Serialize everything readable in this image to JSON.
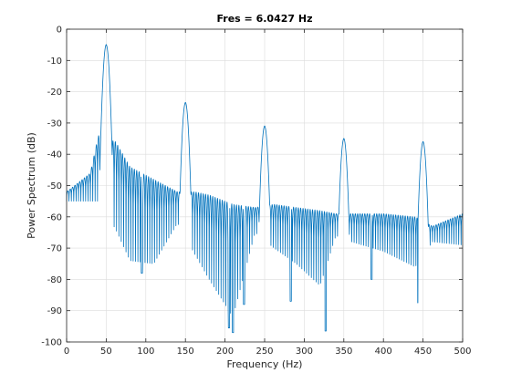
{
  "chart_data": {
    "type": "line",
    "title": "Fres = 6.0427 Hz",
    "xlabel": "Frequency (Hz)",
    "ylabel": "Power Spectrum (dB)",
    "xlim": [
      0,
      500
    ],
    "ylim": [
      -100,
      0
    ],
    "xticks": [
      0,
      50,
      100,
      150,
      200,
      250,
      300,
      350,
      400,
      450,
      500
    ],
    "yticks": [
      0,
      -10,
      -20,
      -30,
      -40,
      -50,
      -60,
      -70,
      -80,
      -90,
      -100
    ],
    "grid": true,
    "line_color": "#0072BD",
    "peaks": [
      {
        "x": 50,
        "y": -5
      },
      {
        "x": 150,
        "y": -23.5
      },
      {
        "x": 250,
        "y": -31
      },
      {
        "x": 350,
        "y": -35
      },
      {
        "x": 450,
        "y": -36
      }
    ],
    "floor": [
      {
        "x": 0,
        "upper": -52,
        "lower": -55
      },
      {
        "x": 30,
        "upper": -46,
        "lower": -55
      },
      {
        "x": 40,
        "upper": -34,
        "lower": -55
      },
      {
        "x": 62,
        "upper": -36,
        "lower": -64
      },
      {
        "x": 80,
        "upper": -44,
        "lower": -74
      },
      {
        "x": 110,
        "upper": -48,
        "lower": -75
      },
      {
        "x": 140,
        "upper": -52,
        "lower": -62
      },
      {
        "x": 162,
        "upper": -52,
        "lower": -72
      },
      {
        "x": 180,
        "upper": -53,
        "lower": -80
      },
      {
        "x": 210,
        "upper": -56,
        "lower": -92
      },
      {
        "x": 238,
        "upper": -57,
        "lower": -65
      },
      {
        "x": 262,
        "upper": -56,
        "lower": -70
      },
      {
        "x": 290,
        "upper": -57,
        "lower": -75
      },
      {
        "x": 320,
        "upper": -58,
        "lower": -82
      },
      {
        "x": 340,
        "upper": -59,
        "lower": -66
      },
      {
        "x": 360,
        "upper": -59,
        "lower": -68
      },
      {
        "x": 400,
        "upper": -59,
        "lower": -71
      },
      {
        "x": 440,
        "upper": -60,
        "lower": -76
      },
      {
        "x": 462,
        "upper": -63,
        "lower": -68
      },
      {
        "x": 500,
        "upper": -59,
        "lower": -69
      }
    ],
    "deep_nulls": [
      {
        "x": 95,
        "y": -78
      },
      {
        "x": 205,
        "y": -95.5
      },
      {
        "x": 210,
        "y": -97
      },
      {
        "x": 224,
        "y": -88
      },
      {
        "x": 283,
        "y": -87
      },
      {
        "x": 327,
        "y": -96.5
      },
      {
        "x": 385,
        "y": -80
      },
      {
        "x": 444,
        "y": -87.5
      }
    ]
  }
}
